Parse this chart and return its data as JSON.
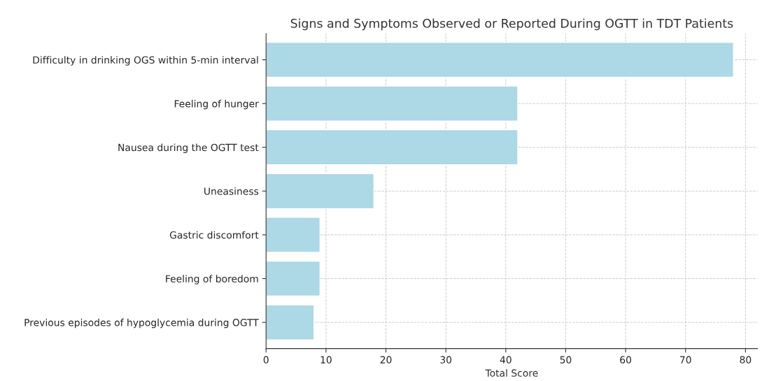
{
  "chart_data": {
    "type": "bar",
    "orientation": "horizontal",
    "title": "Signs and Symptoms Observed or Reported During OGTT in TDT Patients",
    "xlabel": "Total Score",
    "categories": [
      "Difficulty in drinking OGS within 5-min interval",
      "Feeling of hunger",
      "Nausea during the OGTT test",
      "Uneasiness",
      "Gastric discomfort",
      "Feeling of boredom",
      "Previous episodes of hypoglycemia during OGTT"
    ],
    "values": [
      78,
      42,
      42,
      18,
      9,
      9,
      8
    ],
    "color": "#add8e6",
    "xlim": [
      0,
      82
    ],
    "xticks": [
      0,
      10,
      20,
      30,
      40,
      50,
      60,
      70,
      80
    ],
    "grid": true
  }
}
